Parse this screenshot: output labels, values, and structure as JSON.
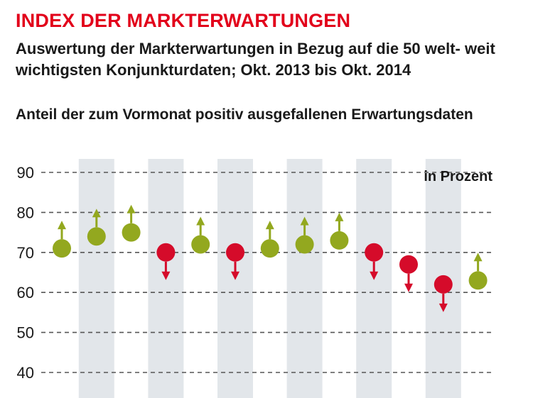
{
  "header": {
    "title": "INDEX DER MARKTERWARTUNGEN",
    "subtitle": "Auswertung der Markterwartungen in Bezug auf die 50 welt- weit wichtigsten Konjunkturdaten; Okt. 2013 bis Okt. 2014",
    "ylabel": "Anteil der zum Vormonat positiv ausgefallenen Erwartungsdaten"
  },
  "chart_data": {
    "type": "scatter",
    "title": "INDEX DER MARKTERWARTUNGEN",
    "ylabel": "Anteil der zum Vormonat positiv ausgefallenen Erwartungsdaten",
    "unit_label": "in Prozent",
    "ylim": [
      40,
      90
    ],
    "yticks": [
      90,
      80,
      70,
      60,
      50,
      40
    ],
    "grid": "dashed horizontal",
    "shaded_bands": "alternating months",
    "x": [
      1,
      2,
      3,
      4,
      5,
      6,
      7,
      8,
      9,
      10,
      11,
      12,
      13
    ],
    "values": [
      71,
      74,
      75,
      70,
      72,
      70,
      71,
      72,
      73,
      70,
      67,
      62,
      63
    ],
    "direction": [
      "up",
      "up",
      "up",
      "down",
      "up",
      "down",
      "up",
      "up",
      "up",
      "down",
      "down",
      "down",
      "up"
    ],
    "colors": {
      "up": "#93a81f",
      "down": "#d50b2a",
      "band": "#e2e6ea",
      "grid": "#555555"
    }
  }
}
